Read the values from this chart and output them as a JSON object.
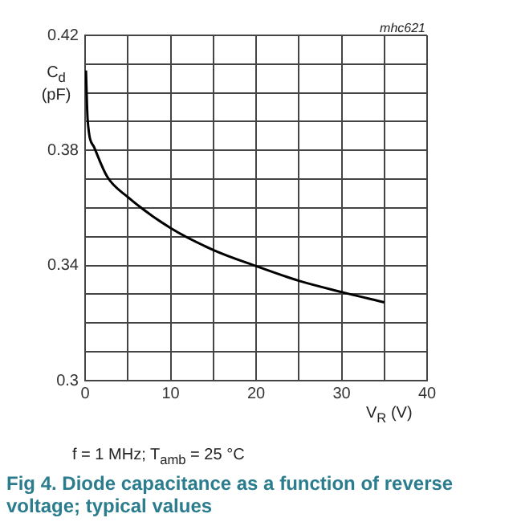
{
  "chart_data": {
    "type": "line",
    "title": "Fig 4.   Diode capacitance as a function of reverse voltage; typical values",
    "xlabel": "V$_{R}$ (V)",
    "ylabel": "C$_{d}$ (pF)",
    "annotations": [
      "mhc621",
      "f = 1 MHz; T$_{amb}$ = 25 °C"
    ],
    "x": [
      0.1,
      0.3,
      1.06,
      2.6,
      5,
      10,
      15,
      20,
      25,
      30,
      35
    ],
    "series": [
      {
        "color": "#000000",
        "values": [
          0.4078,
          0.3905,
          0.3811,
          0.3708,
          0.3638,
          0.353,
          0.3454,
          0.3398,
          0.3347,
          0.3308,
          0.3272
        ]
      }
    ],
    "xlim": [
      0,
      40
    ],
    "ylim": [
      0.3,
      0.42
    ],
    "xticks": [
      0,
      {
        "value": 5,
        "label": null
      },
      10,
      {
        "value": 15,
        "label": null
      },
      20,
      {
        "value": 25,
        "label": null
      },
      30,
      {
        "value": 35,
        "label": null
      },
      40
    ],
    "yticks": [
      0.3,
      {
        "value": 0.31,
        "label": null
      },
      {
        "value": 0.32,
        "label": null
      },
      {
        "value": 0.33,
        "label": null
      },
      0.34,
      {
        "value": 0.35,
        "label": null
      },
      {
        "value": 0.36,
        "label": null
      },
      {
        "value": 0.37,
        "label": null
      },
      0.38,
      {
        "value": 0.39,
        "label": null
      },
      {
        "value": 0.4,
        "label": null
      },
      {
        "value": 0.41,
        "label": null
      },
      0.42
    ],
    "grid": true,
    "legend": false,
    "marker": "none",
    "line_style": "solid"
  }
}
